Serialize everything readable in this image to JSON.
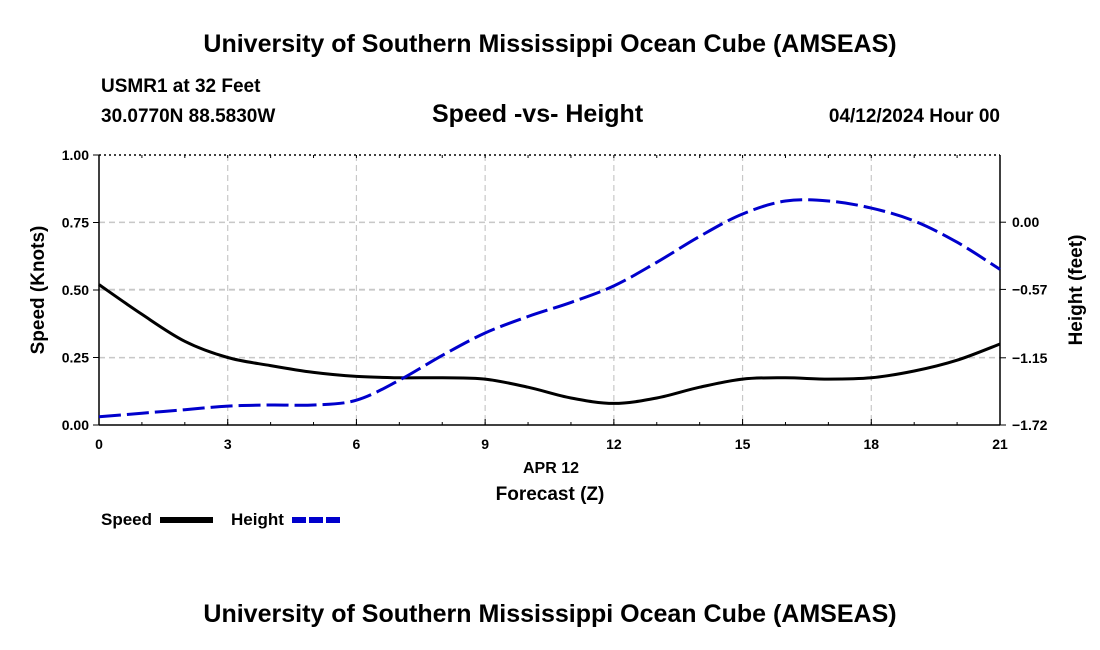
{
  "page": {
    "top_title": "University of Southern Mississippi Ocean Cube (AMSEAS)",
    "bottom_title": "University of Southern Mississippi Ocean Cube (AMSEAS)",
    "station": "USMR1 at 32 Feet",
    "location": "30.0770N  88.5830W",
    "date": "04/12/2024 Hour 00"
  },
  "chart_data": {
    "type": "line",
    "title": "Speed -vs- Height",
    "xlabel": "Forecast (Z)",
    "xsublabel": "APR 12",
    "ylabel_left": "Speed (Knots)",
    "ylabel_right": "Height (feet)",
    "xlim": [
      0,
      21
    ],
    "ylim_left": [
      0,
      1.0
    ],
    "ylim_right": [
      -1.72,
      0.57
    ],
    "x_ticks": [
      "0",
      "3",
      "6",
      "9",
      "12",
      "15",
      "18",
      "21"
    ],
    "y_ticks_left": [
      "0.00",
      "0.25",
      "0.50",
      "0.75",
      "1.00"
    ],
    "y_ticks_right": [
      "-1.72",
      "-1.15",
      "-0.57",
      "0.00"
    ],
    "grid": true,
    "legend": [
      "Speed",
      "Height"
    ],
    "series": [
      {
        "name": "Speed",
        "axis": "left",
        "color": "#000000",
        "dash": "solid",
        "x": [
          0,
          1,
          2,
          3,
          4,
          5,
          6,
          7,
          8,
          9,
          10,
          11,
          12,
          13,
          14,
          15,
          16,
          17,
          18,
          19,
          20,
          21
        ],
        "values": [
          0.52,
          0.41,
          0.31,
          0.25,
          0.22,
          0.195,
          0.18,
          0.175,
          0.175,
          0.17,
          0.14,
          0.1,
          0.08,
          0.1,
          0.14,
          0.17,
          0.175,
          0.17,
          0.175,
          0.2,
          0.24,
          0.3
        ]
      },
      {
        "name": "Height",
        "axis": "right",
        "color": "#0000cc",
        "dash": "dashed",
        "x": [
          0,
          1,
          2,
          3,
          4,
          5,
          6,
          7,
          8,
          9,
          10,
          11,
          12,
          13,
          14,
          15,
          16,
          17,
          18,
          19,
          20,
          21
        ],
        "values": [
          -1.65,
          -1.62,
          -1.59,
          -1.56,
          -1.55,
          -1.55,
          -1.51,
          -1.34,
          -1.13,
          -0.94,
          -0.8,
          -0.68,
          -0.54,
          -0.34,
          -0.12,
          0.07,
          0.18,
          0.18,
          0.12,
          0.01,
          -0.17,
          -0.4
        ]
      }
    ]
  }
}
